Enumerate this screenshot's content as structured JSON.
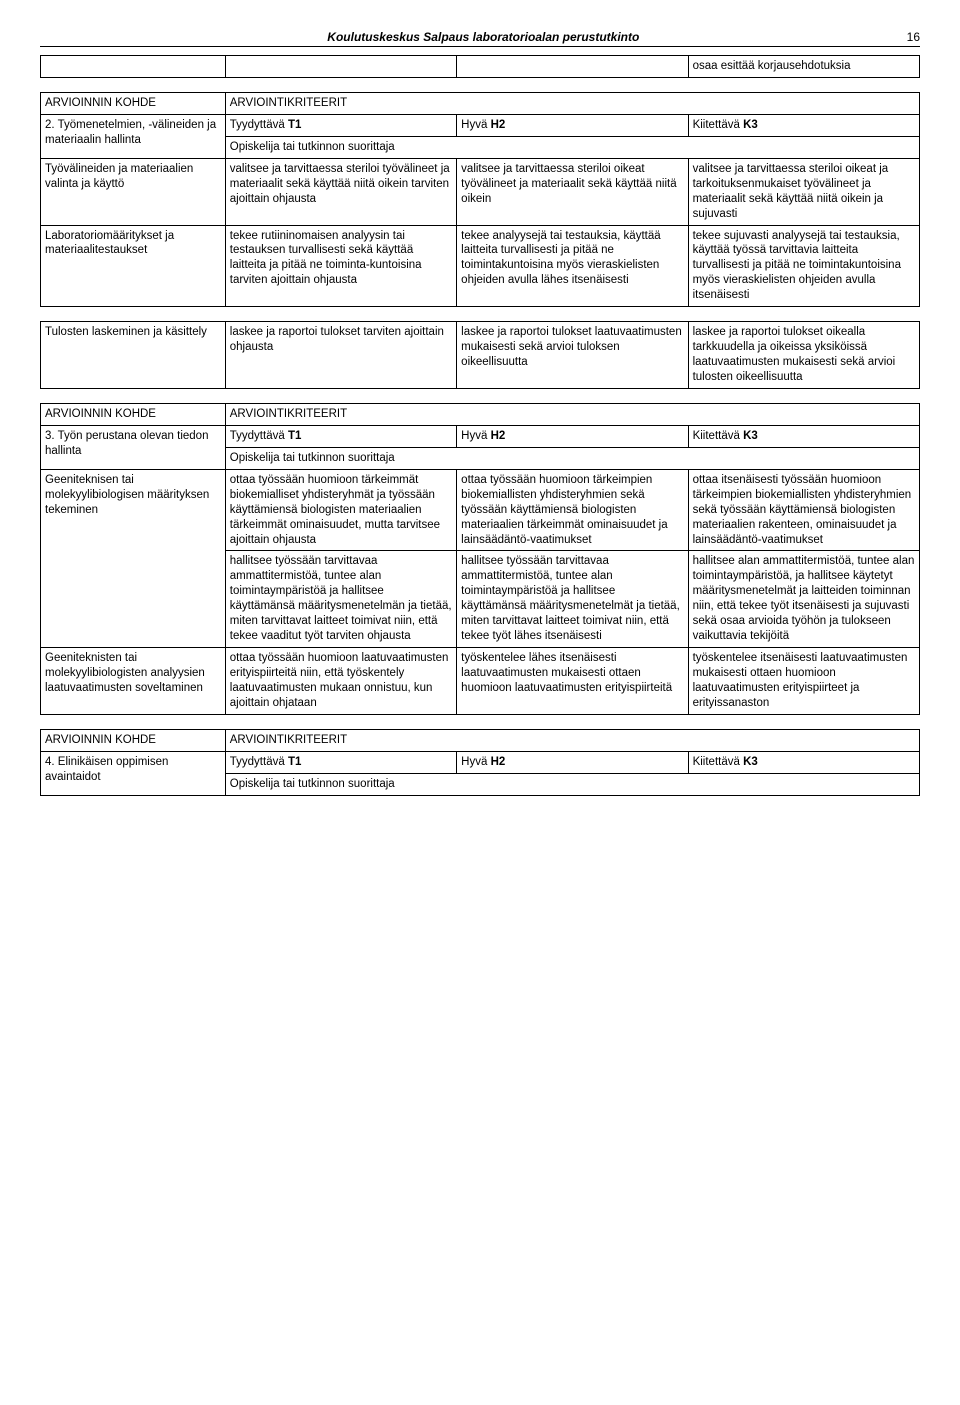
{
  "header": {
    "title": "Koulutuskeskus Salpaus laboratorioalan perustutkinto",
    "page": "16"
  },
  "pretable": {
    "cell": "osaa esittää korjausehdotuksia"
  },
  "table2": {
    "section_label": "ARVIOINNIN KOHDE",
    "section_criteria": "ARVIOINTIKRITEERIT",
    "row_title_label": "2. Työmenetelmien, -välineiden ja materiaalin hallinta",
    "t1": "Tyydyttävä T1",
    "h2": "Hyvä H2",
    "k3": "Kiitettävä K3",
    "opiskelija": "Opiskelija tai tutkinnon suorittaja",
    "r1": {
      "label": "Työvälineiden ja materiaalien valinta ja käyttö",
      "t1": "valitsee ja tarvittaessa steriloi työvälineet ja materiaalit sekä käyttää niitä oikein tarviten ajoittain ohjausta",
      "h2": "valitsee ja tarvittaessa steriloi oikeat työvälineet ja materiaalit sekä käyttää niitä oikein",
      "k3": "valitsee ja tarvittaessa steriloi oikeat ja tarkoituksenmukaiset työvälineet ja materiaalit sekä käyttää niitä oikein ja sujuvasti"
    },
    "r2": {
      "label": "Laboratoriomääritykset ja materiaalitestaukset",
      "t1": "tekee rutiininomaisen analyysin tai testauksen turvallisesti sekä käyttää laitteita ja pitää ne toiminta-kuntoisina tarviten ajoittain ohjausta",
      "h2": "tekee analyysejä tai testauksia, käyttää laitteita turvallisesti ja pitää ne toimintakuntoisina myös vieraskielisten ohjeiden avulla lähes itsenäisesti",
      "k3": "tekee sujuvasti analyysejä tai testauksia, käyttää työssä tarvittavia laitteita turvallisesti ja pitää ne toimintakuntoisina myös vieraskielisten ohjeiden avulla itsenäisesti"
    },
    "r3": {
      "label": "Tulosten laskeminen ja käsittely",
      "t1": "laskee ja raportoi tulokset tarviten ajoittain ohjausta",
      "h2": "laskee ja raportoi tulokset laatuvaatimusten mukaisesti sekä arvioi tuloksen oikeellisuutta",
      "k3": "laskee ja raportoi tulokset oikealla tarkkuudella ja oikeissa yksiköissä laatuvaatimusten mukaisesti sekä arvioi tulosten oikeellisuutta"
    }
  },
  "table3": {
    "section_label": "ARVIOINNIN KOHDE",
    "section_criteria": "ARVIOINTIKRITEERIT",
    "row_title_label": "3. Työn perustana olevan tiedon hallinta",
    "t1": "Tyydyttävä T1",
    "h2": "Hyvä H2",
    "k3": "Kiitettävä K3",
    "opiskelija": "Opiskelija tai tutkinnon suorittaja",
    "r1": {
      "label": "Geeniteknisen tai molekyylibiologisen määrityksen tekeminen",
      "t1": "ottaa työssään huomioon tärkeimmät biokemialliset yhdisteryhmät ja työssään käyttämiensä biologisten materiaalien tärkeimmät ominaisuudet, mutta tarvitsee ajoittain ohjausta",
      "h2": "ottaa työssään huomioon tärkeimpien biokemiallisten yhdisteryhmien sekä työssään käyttämiensä biologisten materiaalien tärkeimmät ominaisuudet ja lainsäädäntö-vaatimukset",
      "k3": "ottaa itsenäisesti työssään huomioon tärkeimpien biokemiallisten yhdisteryhmien sekä työssään käyttämiensä biologisten materiaalien rakenteen, ominaisuudet ja lainsäädäntö-vaatimukset"
    },
    "r2": {
      "label": "",
      "t1": "hallitsee työssään tarvittavaa ammattitermistöä, tuntee alan toimintaympäristöä ja hallitsee käyttämänsä määritysmenetelmän ja tietää, miten tarvittavat laitteet toimivat niin, että tekee vaaditut työt tarviten ohjausta",
      "h2": "hallitsee työssään tarvittavaa ammattitermistöä, tuntee alan toimintaympäristöä ja hallitsee käyttämänsä määritysmenetelmät ja tietää, miten tarvittavat laitteet toimivat niin, että tekee työt lähes itsenäisesti",
      "k3": "hallitsee alan ammattitermistöä, tuntee alan toimintaympäristöä, ja hallitsee käytetyt määritysmenetelmät ja laitteiden toiminnan niin, että tekee työt itsenäisesti ja sujuvasti sekä osaa arvioida työhön ja tulokseen vaikuttavia tekijöitä"
    },
    "r3": {
      "label": "Geeniteknisten tai molekyylibiologisten analyysien laatuvaatimusten soveltaminen",
      "t1": "ottaa työssään huomioon laatuvaatimusten erityispiirteitä niin, että työskentely laatuvaatimusten mukaan onnistuu, kun ajoittain ohjataan",
      "h2": "työskentelee lähes itsenäisesti laatuvaatimusten mukaisesti ottaen huomioon laatuvaatimusten erityispiirteitä",
      "k3": "työskentelee itsenäisesti laatuvaatimusten mukaisesti ottaen huomioon laatuvaatimusten erityispiirteet ja erityissanaston"
    }
  },
  "table4": {
    "section_label": "ARVIOINNIN KOHDE",
    "section_criteria": "ARVIOINTIKRITEERIT",
    "row_title_label": "4. Elinikäisen oppimisen avaintaidot",
    "t1": "Tyydyttävä T1",
    "h2": "Hyvä H2",
    "k3": "Kiitettävä K3",
    "opiskelija": "Opiskelija tai tutkinnon suorittaja"
  },
  "bold": {
    "t1b": "T1",
    "h2b": "H2",
    "k3b": "K3"
  }
}
